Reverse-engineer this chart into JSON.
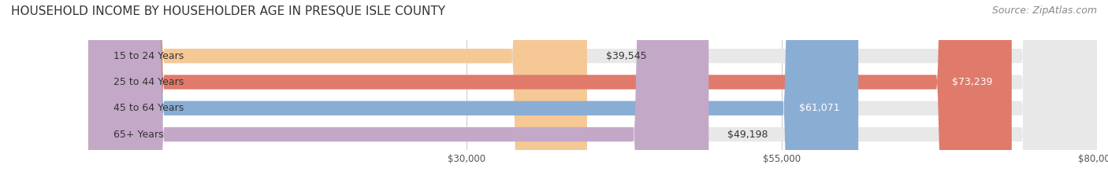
{
  "title": "HOUSEHOLD INCOME BY HOUSEHOLDER AGE IN PRESQUE ISLE COUNTY",
  "source": "Source: ZipAtlas.com",
  "categories": [
    "15 to 24 Years",
    "25 to 44 Years",
    "45 to 64 Years",
    "65+ Years"
  ],
  "values": [
    39545,
    73239,
    61071,
    49198
  ],
  "bar_colors": [
    "#f5c896",
    "#e07a6a",
    "#8aadd4",
    "#c4a8c8"
  ],
  "bar_bg_color": "#e8e8e8",
  "label_colors": [
    "#555555",
    "#ffffff",
    "#ffffff",
    "#555555"
  ],
  "xmin": 0,
  "xmax": 80000,
  "xticks": [
    30000,
    55000,
    80000
  ],
  "xtick_labels": [
    "$30,000",
    "$55,000",
    "$80,000"
  ],
  "bar_height": 0.55,
  "title_fontsize": 11,
  "source_fontsize": 9,
  "label_fontsize": 9,
  "category_fontsize": 9,
  "value_label_threshold": 60000,
  "background_color": "#ffffff"
}
